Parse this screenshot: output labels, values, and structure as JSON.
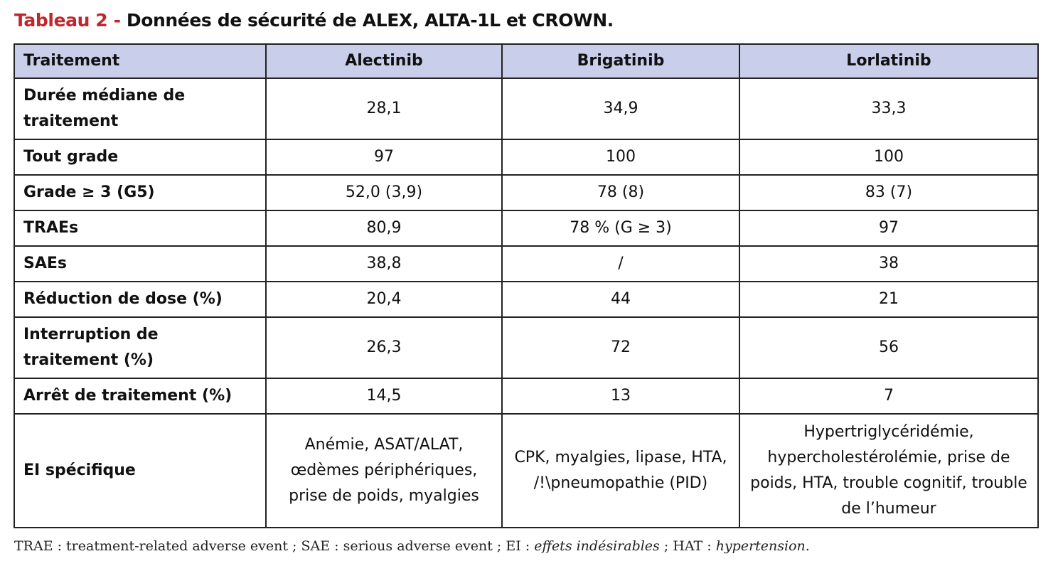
{
  "title": {
    "prefix": "Tableau 2 - ",
    "text": "Données de sécurité de ALEX, ALTA-1L et CROWN."
  },
  "table": {
    "headers": [
      "Traitement",
      "Alectinib",
      "Brigatinib",
      "Lorlatinib"
    ],
    "rows": [
      {
        "label": "Durée médiane de traitement",
        "values": [
          "28,1",
          "34,9",
          "33,3"
        ]
      },
      {
        "label": "Tout grade",
        "values": [
          "97",
          "100",
          "100"
        ]
      },
      {
        "label": "Grade ≥ 3 (G5)",
        "values": [
          "52,0 (3,9)",
          "78 (8)",
          "83 (7)"
        ]
      },
      {
        "label": "TRAEs",
        "values": [
          "80,9",
          "78 % (G ≥ 3)",
          "97"
        ]
      },
      {
        "label": "SAEs",
        "values": [
          "38,8",
          "/",
          "38"
        ]
      },
      {
        "label": "Réduction de dose (%)",
        "values": [
          "20,4",
          "44",
          "21"
        ]
      },
      {
        "label": "Interruption de traitement (%)",
        "values": [
          "26,3",
          "72",
          "56"
        ]
      },
      {
        "label": "Arrêt de traitement (%)",
        "values": [
          "14,5",
          "13",
          "7"
        ]
      },
      {
        "label": "EI spécifique",
        "values": [
          "Anémie, ASAT/ALAT, œdèmes périphériques, prise de poids, myalgies",
          "CPK, myalgies, lipase, HTA, /!\\pneumopathie (PID)",
          "Hypertriglycéridémie, hypercholestérolémie, prise de poids, HTA, trouble cognitif, trouble de l’humeur"
        ]
      }
    ]
  },
  "footnote": {
    "part1": "TRAE : treatment-related adverse event ; SAE : serious adverse event ; EI : ",
    "part2": "effets indésirables",
    "part3": " ; HAT : ",
    "part4": "hypertension."
  }
}
